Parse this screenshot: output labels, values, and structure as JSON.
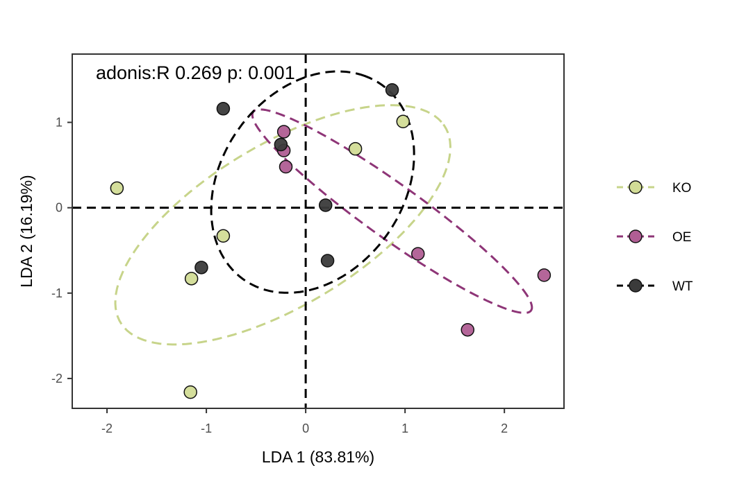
{
  "chart_data": {
    "type": "scatter",
    "title": "",
    "xlabel": "LDA 1 (83.81%)",
    "ylabel": "LDA 2 (16.19%)",
    "xlim": [
      -2.35,
      2.6
    ],
    "ylim": [
      -2.35,
      1.8
    ],
    "xticks": [
      -2,
      -1,
      0,
      1,
      2
    ],
    "yticks": [
      -2,
      -1,
      0,
      1
    ],
    "xtick_labels": [
      "-2",
      "-1",
      "0",
      "1",
      "2"
    ],
    "ytick_labels": [
      "-2",
      "-1",
      "0",
      "1"
    ],
    "grid": false,
    "reference_lines": {
      "x": 0,
      "y": 0,
      "style": "dashed"
    },
    "annotation": "adonis:R 0.269 p: 0.001",
    "legend_position": "right",
    "series": [
      {
        "name": "KO",
        "color": "#d2dc96",
        "ellipse_color": "#c7d48a",
        "points": [
          {
            "x": -1.9,
            "y": 0.23
          },
          {
            "x": -0.83,
            "y": -0.33
          },
          {
            "x": -1.15,
            "y": -0.83
          },
          {
            "x": -1.16,
            "y": -2.16
          },
          {
            "x": 0.5,
            "y": 0.69
          },
          {
            "x": 0.98,
            "y": 1.01
          }
        ],
        "ellipse": {
          "cx": -0.23,
          "cy": -0.2,
          "rx": 2.0,
          "ry": 0.9,
          "angle_deg": 37
        }
      },
      {
        "name": "OE",
        "color": "#b05e94",
        "ellipse_color": "#8e3577",
        "points": [
          {
            "x": -0.22,
            "y": 0.89
          },
          {
            "x": -0.22,
            "y": 0.67
          },
          {
            "x": -0.2,
            "y": 0.48
          },
          {
            "x": 1.13,
            "y": -0.54
          },
          {
            "x": 1.63,
            "y": -1.43
          },
          {
            "x": 2.4,
            "y": -0.79
          }
        ],
        "ellipse": {
          "cx": 0.87,
          "cy": -0.04,
          "rx": 1.82,
          "ry": 0.3,
          "angle_deg": -40
        }
      },
      {
        "name": "WT",
        "color": "#3b3b3b",
        "ellipse_color": "#000000",
        "points": [
          {
            "x": -0.83,
            "y": 1.16
          },
          {
            "x": -0.25,
            "y": 0.74
          },
          {
            "x": 0.87,
            "y": 1.38
          },
          {
            "x": 0.2,
            "y": 0.03
          },
          {
            "x": 0.22,
            "y": -0.62
          },
          {
            "x": -1.05,
            "y": -0.7
          }
        ],
        "ellipse": {
          "cx": 0.07,
          "cy": 0.3,
          "rx": 1.35,
          "ry": 0.95,
          "angle_deg": 67
        }
      }
    ]
  }
}
